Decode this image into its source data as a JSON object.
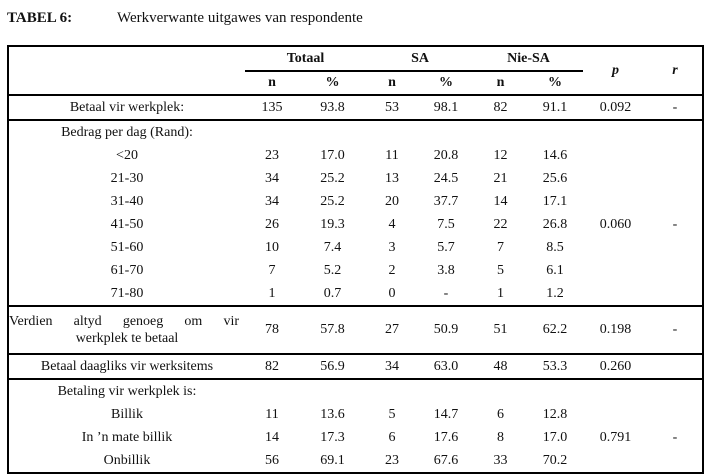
{
  "title": {
    "label": "TABEL 6:",
    "text": "Werkverwante uitgawes van respondente"
  },
  "header": {
    "totaal": "Totaal",
    "sa": "SA",
    "nie_sa": "Nie-SA",
    "n": "n",
    "pct": "%",
    "p": "p",
    "r": "r"
  },
  "betaal_werkplek": {
    "label": "Betaal vir werkplek:",
    "t_n": "135",
    "t_pct": "93.8",
    "sa_n": "53",
    "sa_pct": "98.1",
    "ns_n": "82",
    "ns_pct": "91.1",
    "p": "0.092",
    "r": "-"
  },
  "bedrag": {
    "label": "Bedrag per dag (Rand):",
    "p": "0.060",
    "r": "-",
    "items": [
      {
        "label": "<20",
        "t_n": "23",
        "t_pct": "17.0",
        "sa_n": "11",
        "sa_pct": "20.8",
        "ns_n": "12",
        "ns_pct": "14.6"
      },
      {
        "label": "21-30",
        "t_n": "34",
        "t_pct": "25.2",
        "sa_n": "13",
        "sa_pct": "24.5",
        "ns_n": "21",
        "ns_pct": "25.6"
      },
      {
        "label": "31-40",
        "t_n": "34",
        "t_pct": "25.2",
        "sa_n": "20",
        "sa_pct": "37.7",
        "ns_n": "14",
        "ns_pct": "17.1"
      },
      {
        "label": "41-50",
        "t_n": "26",
        "t_pct": "19.3",
        "sa_n": "4",
        "sa_pct": "7.5",
        "ns_n": "22",
        "ns_pct": "26.8"
      },
      {
        "label": "51-60",
        "t_n": "10",
        "t_pct": "7.4",
        "sa_n": "3",
        "sa_pct": "5.7",
        "ns_n": "7",
        "ns_pct": "8.5"
      },
      {
        "label": "61-70",
        "t_n": "7",
        "t_pct": "5.2",
        "sa_n": "2",
        "sa_pct": "3.8",
        "ns_n": "5",
        "ns_pct": "6.1"
      },
      {
        "label": "71-80",
        "t_n": "1",
        "t_pct": "0.7",
        "sa_n": "0",
        "sa_pct": "-",
        "ns_n": "1",
        "ns_pct": "1.2"
      }
    ]
  },
  "verdien": {
    "label_line1": "Verdien altyd genoeg om vir",
    "label_line2": "werkplek te betaal",
    "t_n": "78",
    "t_pct": "57.8",
    "sa_n": "27",
    "sa_pct": "50.9",
    "ns_n": "51",
    "ns_pct": "62.2",
    "p": "0.198",
    "r": "-"
  },
  "daagliks": {
    "label": "Betaal daagliks vir werksitems",
    "t_n": "82",
    "t_pct": "56.9",
    "sa_n": "34",
    "sa_pct": "63.0",
    "ns_n": "48",
    "ns_pct": "53.3",
    "p": "0.260"
  },
  "betaling": {
    "label": "Betaling vir werkplek is:",
    "p": "0.791",
    "r": "-",
    "items": [
      {
        "label": "Billik",
        "t_n": "11",
        "t_pct": "13.6",
        "sa_n": "5",
        "sa_pct": "14.7",
        "ns_n": "6",
        "ns_pct": "12.8"
      },
      {
        "label": "In ’n mate billik",
        "t_n": "14",
        "t_pct": "17.3",
        "sa_n": "6",
        "sa_pct": "17.6",
        "ns_n": "8",
        "ns_pct": "17.0"
      },
      {
        "label": "Onbillik",
        "t_n": "56",
        "t_pct": "69.1",
        "sa_n": "23",
        "sa_pct": "67.6",
        "ns_n": "33",
        "ns_pct": "70.2"
      }
    ]
  }
}
